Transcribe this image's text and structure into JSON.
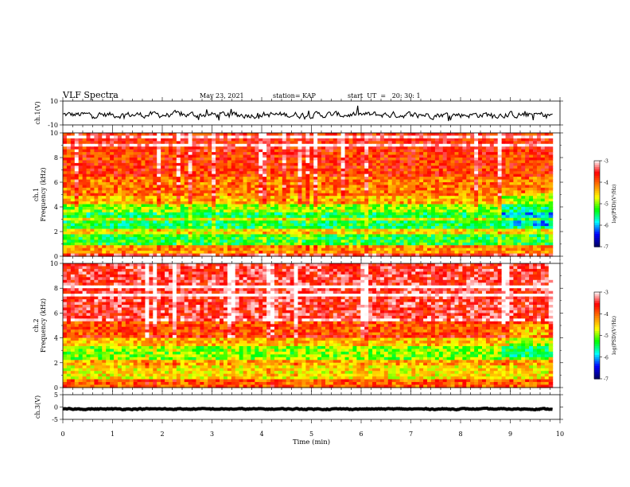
{
  "header": {
    "title": "VLF Spectra",
    "date": "May 23, 2021",
    "station": "station= KAP",
    "start": "start  UT  =   20: 30: 1"
  },
  "chart_data": [
    {
      "type": "line",
      "panel": "ch1-waveform",
      "ylabel": "ch.1(V)",
      "ylim": [
        -10,
        10
      ],
      "yticks": [
        "10",
        "-10"
      ],
      "xlim": [
        0,
        10
      ],
      "x_max_data": 9.85,
      "series": [
        {
          "values_description_only": "noisy waveform",
          "baseline": -1.5,
          "amplitude": 3.5
        }
      ]
    },
    {
      "type": "heatmap",
      "panel": "ch1-spectrogram",
      "ylabel": "ch.1\nFrequency (kHz)",
      "ylim": [
        0,
        10
      ],
      "yticks": [
        "0",
        "2",
        "4",
        "6",
        "8",
        "10"
      ],
      "xlim": [
        0,
        10
      ],
      "x_max_data": 9.85,
      "colorbar": {
        "label": "log(PSD)(V²/Hz)",
        "range": [
          -7,
          -3
        ],
        "ticks": [
          "-3",
          "-4",
          "-5",
          "-6",
          "-7"
        ]
      },
      "bands_logpsd": [
        {
          "f": [
            0,
            0.8
          ],
          "v": -4.2
        },
        {
          "f": [
            0.8,
            1.8
          ],
          "v": -5.3
        },
        {
          "f": [
            1.8,
            2.3
          ],
          "v": -4.6
        },
        {
          "f": [
            2.3,
            3.6
          ],
          "v": -5.4
        },
        {
          "f": [
            3.6,
            4.4
          ],
          "v": -5.0
        },
        {
          "f": [
            4.4,
            5.0
          ],
          "v": -4.4
        },
        {
          "f": [
            5.0,
            6.5
          ],
          "v": -4.1
        },
        {
          "f": [
            6.5,
            8.5
          ],
          "v": -3.8
        },
        {
          "f": [
            8.5,
            10
          ],
          "v": -3.7
        }
      ],
      "change_after_min": 8.8
    },
    {
      "type": "heatmap",
      "panel": "ch2-spectrogram",
      "ylabel": "ch.2\nFrequency (kHz)",
      "ylim": [
        0,
        10
      ],
      "yticks": [
        "0",
        "2",
        "4",
        "6",
        "8",
        "10"
      ],
      "xlim": [
        0,
        10
      ],
      "x_max_data": 9.85,
      "colorbar": {
        "label": "log(PSD)(V²/Hz)",
        "range": [
          -7,
          -3
        ],
        "ticks": [
          "-3",
          "-4",
          "-5",
          "-6",
          "-7"
        ]
      },
      "bands_logpsd": [
        {
          "f": [
            0,
            0.7
          ],
          "v": -4.0
        },
        {
          "f": [
            0.7,
            1.7
          ],
          "v": -4.6
        },
        {
          "f": [
            1.7,
            2.2
          ],
          "v": -4.3
        },
        {
          "f": [
            2.2,
            3.4
          ],
          "v": -5.0
        },
        {
          "f": [
            3.4,
            4.2
          ],
          "v": -4.4
        },
        {
          "f": [
            4.2,
            5.5
          ],
          "v": -3.9
        },
        {
          "f": [
            5.5,
            10
          ],
          "v": -3.5
        }
      ],
      "change_after_min": 8.8
    },
    {
      "type": "line",
      "panel": "ch3-waveform",
      "ylabel": "ch.3(V)",
      "ylim": [
        -5,
        5
      ],
      "yticks": [
        "5",
        "0",
        "-5"
      ],
      "xlim": [
        0,
        10
      ],
      "x_max_data": 9.85,
      "series": [
        {
          "baseline": -0.8,
          "amplitude": 0.3
        }
      ]
    }
  ],
  "xaxis": {
    "label": "Time (min)",
    "ticks": [
      "0",
      "1",
      "2",
      "3",
      "4",
      "5",
      "6",
      "7",
      "8",
      "9",
      "10"
    ]
  },
  "colors": {
    "colormap": [
      "#000060",
      "#0000ff",
      "#00ffff",
      "#00ff00",
      "#ffff00",
      "#ff8000",
      "#ff0000",
      "#ffffff"
    ],
    "line": "#000000"
  }
}
